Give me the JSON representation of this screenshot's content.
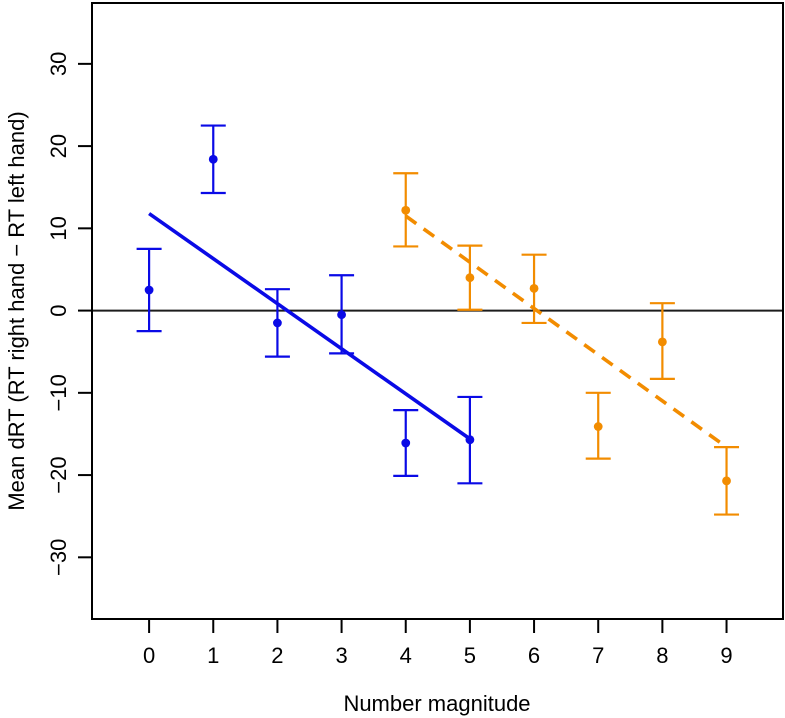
{
  "chart_data": {
    "type": "scatter",
    "title": "",
    "xlabel": "Number magnitude",
    "ylabel": "Mean dRT (RT right hand − RT left hand)",
    "xlim": [
      -0.89,
      9.88
    ],
    "ylim": [
      -37.5,
      37.4
    ],
    "grid": false,
    "legend_position": "none",
    "frame_color": "#000000",
    "reference_line": {
      "y": 0,
      "color": "#1c1c1c"
    },
    "x_ticks": [
      {
        "value": 0,
        "label": "0"
      },
      {
        "value": 1,
        "label": "1"
      },
      {
        "value": 2,
        "label": "2"
      },
      {
        "value": 3,
        "label": "3"
      },
      {
        "value": 4,
        "label": "4"
      },
      {
        "value": 5,
        "label": "5"
      },
      {
        "value": 6,
        "label": "6"
      },
      {
        "value": 7,
        "label": "7"
      },
      {
        "value": 8,
        "label": "8"
      },
      {
        "value": 9,
        "label": "9"
      }
    ],
    "y_ticks": [
      {
        "value": -30,
        "label": "−30"
      },
      {
        "value": -20,
        "label": "−20"
      },
      {
        "value": -10,
        "label": "−10"
      },
      {
        "value": 0,
        "label": "0"
      },
      {
        "value": 10,
        "label": "10"
      },
      {
        "value": 20,
        "label": "20"
      },
      {
        "value": 30,
        "label": "30"
      }
    ],
    "series": [
      {
        "id": "blue-series",
        "color": "#0A0AE6",
        "marker": "filled-circle",
        "fit_line_style": "solid",
        "points": [
          {
            "x": 0,
            "y": 2.5,
            "ci_high": 7.5,
            "ci_low": -2.5
          },
          {
            "x": 1,
            "y": 18.4,
            "ci_high": 22.5,
            "ci_low": 14.3
          },
          {
            "x": 2,
            "y": -1.5,
            "ci_high": 2.6,
            "ci_low": -5.6
          },
          {
            "x": 3,
            "y": -0.5,
            "ci_high": 4.3,
            "ci_low": -5.2
          },
          {
            "x": 4,
            "y": -16.1,
            "ci_high": -12.1,
            "ci_low": -20.1
          },
          {
            "x": 5,
            "y": -15.7,
            "ci_high": -10.5,
            "ci_low": -21.0
          }
        ],
        "fit_line": {
          "x1": 0,
          "y1": 11.8,
          "x2": 5,
          "y2": -15.6
        }
      },
      {
        "id": "orange-series",
        "color": "#F28C00",
        "marker": "filled-circle",
        "fit_line_style": "dashed",
        "points": [
          {
            "x": 4,
            "y": 12.2,
            "ci_high": 16.7,
            "ci_low": 7.8
          },
          {
            "x": 5,
            "y": 4.0,
            "ci_high": 7.9,
            "ci_low": 0.1
          },
          {
            "x": 6,
            "y": 2.7,
            "ci_high": 6.8,
            "ci_low": -1.5
          },
          {
            "x": 7,
            "y": -14.1,
            "ci_high": -10.0,
            "ci_low": -18.0
          },
          {
            "x": 8,
            "y": -3.8,
            "ci_high": 0.9,
            "ci_low": -8.3
          },
          {
            "x": 9,
            "y": -20.7,
            "ci_high": -16.6,
            "ci_low": -24.8
          }
        ],
        "fit_line": {
          "x1": 4,
          "y1": 11.5,
          "x2": 9,
          "y2": -16.6
        }
      }
    ]
  }
}
